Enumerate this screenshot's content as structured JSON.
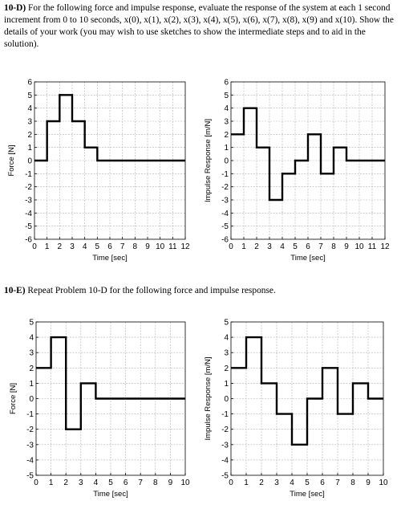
{
  "problems": [
    {
      "label": "10-D)",
      "text": " For the following force and impulse response, evaluate the response of the system at each 1 second increment from 0 to 10 seconds, x(0), x(1), x(2), x(3), x(4), x(5), x(6), x(7), x(8), x(9) and x(10). Show the details of your work (you may wish to use sketches to show the intermediate steps and to aid in the solution)."
    },
    {
      "label": "10-E)",
      "text": " Repeat Problem 10-D for the following force and impulse response."
    }
  ],
  "chart_data": [
    {
      "type": "line",
      "step": "post",
      "title": "",
      "xlabel": "Time [sec]",
      "ylabel": "Force [N]",
      "xlim": [
        0,
        12
      ],
      "ylim": [
        -6,
        6
      ],
      "xticks": [
        0,
        1,
        2,
        3,
        4,
        5,
        6,
        7,
        8,
        9,
        10,
        11,
        12
      ],
      "yticks": [
        -6,
        -5,
        -4,
        -3,
        -2,
        -1,
        0,
        1,
        2,
        3,
        4,
        5,
        6
      ],
      "grid": true,
      "x": [
        0,
        1,
        2,
        3,
        4,
        5,
        12
      ],
      "y": [
        0,
        3,
        5,
        3,
        1,
        0,
        0
      ]
    },
    {
      "type": "line",
      "step": "post",
      "title": "",
      "xlabel": "Time [sec]",
      "ylabel": "Impulse Response [m/N]",
      "xlim": [
        0,
        12
      ],
      "ylim": [
        -6,
        6
      ],
      "xticks": [
        0,
        1,
        2,
        3,
        4,
        5,
        6,
        7,
        8,
        9,
        10,
        11,
        12
      ],
      "yticks": [
        -6,
        -5,
        -4,
        -3,
        -2,
        -1,
        0,
        1,
        2,
        3,
        4,
        5,
        6
      ],
      "grid": true,
      "x": [
        0,
        1,
        2,
        3,
        4,
        5,
        6,
        7,
        8,
        9,
        12
      ],
      "y": [
        2,
        4,
        1,
        -3,
        -1,
        0,
        2,
        -1,
        1,
        0,
        0
      ]
    },
    {
      "type": "line",
      "step": "post",
      "title": "",
      "xlabel": "Time [sec]",
      "ylabel": "Force [N]",
      "xlim": [
        0,
        10
      ],
      "ylim": [
        -5,
        5
      ],
      "xticks": [
        0,
        1,
        2,
        3,
        4,
        5,
        6,
        7,
        8,
        9,
        10
      ],
      "yticks": [
        -5,
        -4,
        -3,
        -2,
        -1,
        0,
        1,
        2,
        3,
        4,
        5
      ],
      "grid": true,
      "x": [
        0,
        1,
        2,
        3,
        4,
        10
      ],
      "y": [
        2,
        4,
        -2,
        1,
        0,
        0
      ]
    },
    {
      "type": "line",
      "step": "post",
      "title": "",
      "xlabel": "Time [sec]",
      "ylabel": "Impulse Response [m/N]",
      "xlim": [
        0,
        10
      ],
      "ylim": [
        -5,
        5
      ],
      "xticks": [
        0,
        1,
        2,
        3,
        4,
        5,
        6,
        7,
        8,
        9,
        10
      ],
      "yticks": [
        -5,
        -4,
        -3,
        -2,
        -1,
        0,
        1,
        2,
        3,
        4,
        5
      ],
      "grid": true,
      "x": [
        0,
        1,
        2,
        3,
        4,
        5,
        6,
        7,
        8,
        9,
        10
      ],
      "y": [
        2,
        4,
        1,
        -1,
        -3,
        0,
        2,
        -1,
        1,
        0,
        0
      ]
    }
  ]
}
